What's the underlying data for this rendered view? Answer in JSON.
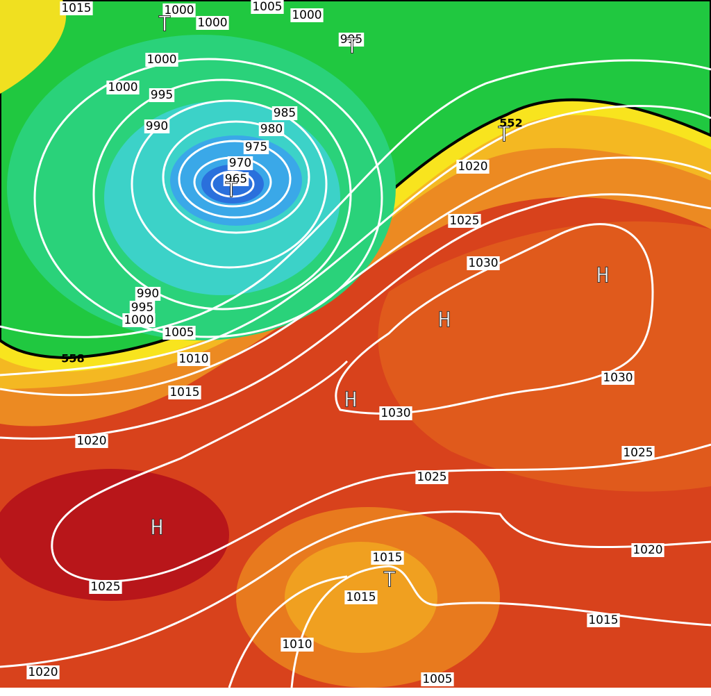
{
  "isobar_labels": [
    "1015",
    "1000",
    "1000",
    "1005",
    "1000",
    "995",
    "1000",
    "1000",
    "995",
    "985",
    "980",
    "990",
    "975",
    "970",
    "965",
    "1020",
    "1025",
    "1030",
    "990",
    "995",
    "1000",
    "1005",
    "1010",
    "1015",
    "1030",
    "1030",
    "1020",
    "1025",
    "1025",
    "1020",
    "1015",
    "1025",
    "1015",
    "1015",
    "1010",
    "1020",
    "1005"
  ],
  "pressure_centers": [
    "H",
    "H",
    "H",
    "H",
    "T",
    "T",
    "T",
    "T",
    "T"
  ],
  "thickness_labels": [
    "552",
    "558"
  ]
}
